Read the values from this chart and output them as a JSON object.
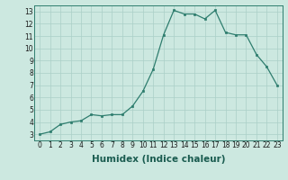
{
  "x": [
    0,
    1,
    2,
    3,
    4,
    5,
    6,
    7,
    8,
    9,
    10,
    11,
    12,
    13,
    14,
    15,
    16,
    17,
    18,
    19,
    20,
    21,
    22,
    23
  ],
  "y": [
    3.0,
    3.2,
    3.8,
    4.0,
    4.1,
    4.6,
    4.5,
    4.6,
    4.6,
    5.3,
    6.5,
    8.3,
    11.1,
    13.1,
    12.8,
    12.8,
    12.4,
    13.1,
    11.3,
    11.1,
    11.1,
    9.5,
    8.5,
    7.0
  ],
  "xlabel": "Humidex (Indice chaleur)",
  "xlim": [
    -0.5,
    23.5
  ],
  "ylim": [
    2.5,
    13.5
  ],
  "yticks": [
    3,
    4,
    5,
    6,
    7,
    8,
    9,
    10,
    11,
    12,
    13
  ],
  "xticks": [
    0,
    1,
    2,
    3,
    4,
    5,
    6,
    7,
    8,
    9,
    10,
    11,
    12,
    13,
    14,
    15,
    16,
    17,
    18,
    19,
    20,
    21,
    22,
    23
  ],
  "line_color": "#2e7d6e",
  "marker_color": "#2e7d6e",
  "bg_color": "#cce8e0",
  "grid_color": "#aacfc7",
  "tick_fontsize": 5.5,
  "xlabel_fontsize": 7.5
}
